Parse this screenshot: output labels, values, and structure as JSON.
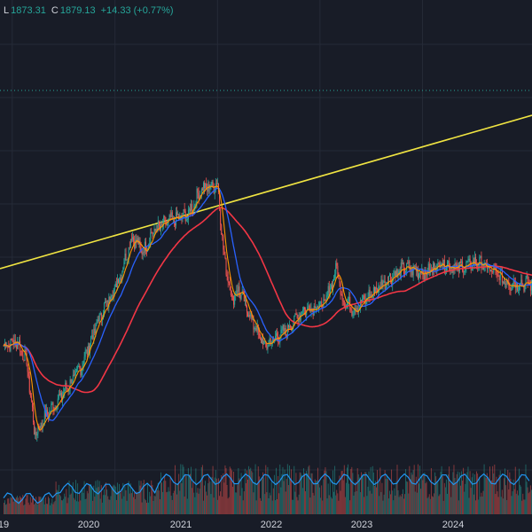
{
  "legend": {
    "low_label": "L",
    "low_value": "1873.31",
    "close_label": "C",
    "close_value": "1879.13",
    "change": "+14.33 (+0.77%)"
  },
  "x_axis": {
    "labels": [
      "19",
      "2020",
      "2021",
      "2022",
      "2023",
      "2024"
    ]
  },
  "colors": {
    "background": "#181c27",
    "grid": "#252a37",
    "up": "#26a69a",
    "down": "#ef5350",
    "trendline": "#f0e442",
    "ma_long": "#f23645",
    "ma_mid": "#2962ff",
    "ma_fast": "#ff9800",
    "volume_ma": "#2196f3",
    "price_line": "#26a69a"
  },
  "chart_data": {
    "type": "line",
    "subtype": "candlestick_with_moving_averages_and_volume",
    "x_range": [
      "2019-12",
      "2025-02"
    ],
    "series_shape": [
      [
        "2019-12-01",
        0.62
      ],
      [
        "2020-01-15",
        0.63
      ],
      [
        "2020-02-20",
        0.59
      ],
      [
        "2020-03-20",
        0.45
      ],
      [
        "2020-04-20",
        0.48
      ],
      [
        "2020-06-15",
        0.52
      ],
      [
        "2020-09-01",
        0.58
      ],
      [
        "2020-11-01",
        0.67
      ],
      [
        "2021-01-15",
        0.75
      ],
      [
        "2021-03-01",
        0.83
      ],
      [
        "2021-04-10",
        0.8
      ],
      [
        "2021-05-15",
        0.84
      ],
      [
        "2021-07-15",
        0.86
      ],
      [
        "2021-09-15",
        0.87
      ],
      [
        "2021-11-01",
        0.92
      ],
      [
        "2022-01-01",
        0.93
      ],
      [
        "2022-01-20",
        0.8
      ],
      [
        "2022-02-20",
        0.71
      ],
      [
        "2022-03-15",
        0.73
      ],
      [
        "2022-05-01",
        0.67
      ],
      [
        "2022-06-15",
        0.62
      ],
      [
        "2022-09-01",
        0.65
      ],
      [
        "2022-11-01",
        0.69
      ],
      [
        "2023-01-15",
        0.7
      ],
      [
        "2023-03-01",
        0.77
      ],
      [
        "2023-03-20",
        0.71
      ],
      [
        "2023-05-01",
        0.69
      ],
      [
        "2023-07-01",
        0.72
      ],
      [
        "2023-09-01",
        0.75
      ],
      [
        "2023-11-01",
        0.77
      ],
      [
        "2024-01-15",
        0.76
      ],
      [
        "2024-03-01",
        0.78
      ],
      [
        "2024-05-01",
        0.77
      ],
      [
        "2024-07-15",
        0.78
      ],
      [
        "2024-09-15",
        0.76
      ],
      [
        "2024-11-01",
        0.74
      ]
    ],
    "value_scale": "relative (no price axis visible)",
    "moving_averages": [
      "fast",
      "mid",
      "long"
    ],
    "trendline": true,
    "volume_histogram": true,
    "grid": true
  }
}
